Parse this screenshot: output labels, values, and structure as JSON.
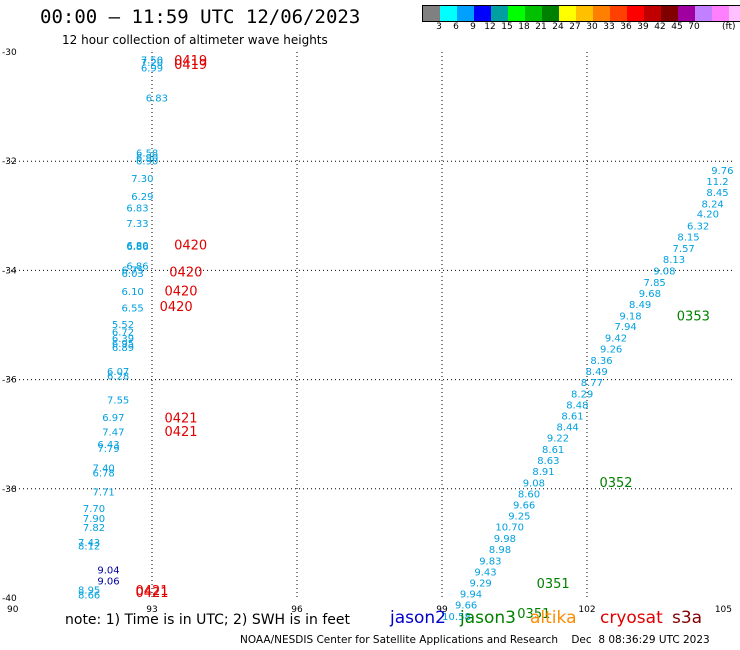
{
  "header": {
    "title": "00:00 – 11:59 UTC 12/06/2023",
    "subtitle": "12 hour collection of altimeter wave heights"
  },
  "colorbar": {
    "colors": [
      "#808080",
      "#00ffff",
      "#00a0ff",
      "#0000ff",
      "#00a0a0",
      "#00ff00",
      "#00c000",
      "#008000",
      "#ffff00",
      "#ffc000",
      "#ff8000",
      "#ff4000",
      "#ff0000",
      "#c00000",
      "#800000",
      "#a000a0",
      "#c080ff",
      "#ff80ff",
      "#ffc0ff",
      "#000000"
    ],
    "labels": [
      "3",
      "6",
      "9",
      "12",
      "15",
      "18",
      "21",
      "24",
      "27",
      "30",
      "33",
      "36",
      "39",
      "42",
      "45",
      "70"
    ],
    "unit": "(ft)"
  },
  "note": "note: 1) Time is in UTC; 2) SWH is in feet",
  "legend": [
    {
      "name": "jason2",
      "color": "#0000c8"
    },
    {
      "name": "jason3",
      "color": "#008000"
    },
    {
      "name": "altika",
      "color": "#ff8c00"
    },
    {
      "name": "cryosat",
      "color": "#e00000"
    },
    {
      "name": "s3a",
      "color": "#800000"
    }
  ],
  "footer": "NOAA/NESDIS Center for Satellite Applications and Research    Dec  8 08:36:29 UTC 2023",
  "chart_data": {
    "type": "scatter",
    "xlim": [
      90,
      105
    ],
    "ylim": [
      -40,
      -30
    ],
    "x_ticks": [
      "90",
      "93",
      "96",
      "99",
      "102",
      "105"
    ],
    "y_ticks": [
      "-30",
      "-32",
      "-34",
      "-36",
      "-38",
      "-40"
    ],
    "grid": true,
    "series": [
      {
        "name": "jason2",
        "color": "#00a0e0",
        "kind": "value",
        "points": [
          {
            "x": 93.0,
            "y": -30.16,
            "label": "7.50"
          },
          {
            "x": 93.0,
            "y": -30.2,
            "label": "7.20"
          },
          {
            "x": 93.0,
            "y": -30.3,
            "label": "6.99"
          },
          {
            "x": 93.1,
            "y": -30.85,
            "label": "6.83"
          },
          {
            "x": 92.9,
            "y": -31.86,
            "label": "6.58"
          },
          {
            "x": 92.9,
            "y": -31.94,
            "label": "6.90"
          },
          {
            "x": 92.9,
            "y": -32.01,
            "label": "6.90"
          },
          {
            "x": 92.8,
            "y": -32.33,
            "label": "7.30"
          },
          {
            "x": 92.8,
            "y": -32.66,
            "label": "6.29"
          },
          {
            "x": 92.7,
            "y": -32.87,
            "label": "6.83"
          },
          {
            "x": 92.7,
            "y": -33.15,
            "label": "7.33"
          },
          {
            "x": 92.7,
            "y": -33.55,
            "label": "6.80"
          },
          {
            "x": 92.7,
            "y": -33.57,
            "label": "6.86"
          },
          {
            "x": 92.7,
            "y": -33.93,
            "label": "6.86"
          },
          {
            "x": 92.6,
            "y": -34.0,
            "label": "6.75"
          },
          {
            "x": 92.6,
            "y": -34.07,
            "label": "6.03"
          },
          {
            "x": 92.6,
            "y": -34.4,
            "label": "6.10"
          },
          {
            "x": 92.6,
            "y": -34.7,
            "label": "6.55"
          },
          {
            "x": 92.4,
            "y": -35.0,
            "label": "5.52"
          },
          {
            "x": 92.4,
            "y": -35.14,
            "label": "6.72"
          },
          {
            "x": 92.4,
            "y": -35.26,
            "label": "6.39"
          },
          {
            "x": 92.4,
            "y": -35.35,
            "label": "6.95"
          },
          {
            "x": 92.4,
            "y": -35.42,
            "label": "6.89"
          },
          {
            "x": 92.3,
            "y": -35.86,
            "label": "6.07"
          },
          {
            "x": 92.3,
            "y": -35.94,
            "label": "6.28"
          },
          {
            "x": 92.3,
            "y": -36.38,
            "label": "7.55"
          },
          {
            "x": 92.2,
            "y": -36.7,
            "label": "6.97"
          },
          {
            "x": 92.2,
            "y": -36.97,
            "label": "7.47"
          },
          {
            "x": 92.1,
            "y": -37.2,
            "label": "6.43"
          },
          {
            "x": 92.1,
            "y": -37.27,
            "label": "7.79"
          },
          {
            "x": 92.0,
            "y": -37.63,
            "label": "7.40"
          },
          {
            "x": 92.0,
            "y": -37.72,
            "label": "6.78"
          },
          {
            "x": 92.0,
            "y": -38.07,
            "label": "7.71"
          },
          {
            "x": 91.8,
            "y": -38.37,
            "label": "7.70"
          },
          {
            "x": 91.8,
            "y": -38.55,
            "label": "7.90"
          },
          {
            "x": 91.8,
            "y": -38.72,
            "label": "7.82"
          },
          {
            "x": 91.7,
            "y": -38.99,
            "label": "7.43"
          },
          {
            "x": 91.7,
            "y": -39.06,
            "label": "8.12"
          },
          {
            "x": 91.7,
            "y": -39.86,
            "label": "8.95"
          },
          {
            "x": 91.7,
            "y": -39.95,
            "label": "8.66"
          }
        ]
      },
      {
        "name": "jason2-dark",
        "color": "#0000a0",
        "kind": "value",
        "points": [
          {
            "x": 92.1,
            "y": -39.5,
            "label": "9.04"
          },
          {
            "x": 92.1,
            "y": -39.7,
            "label": "9.06"
          }
        ]
      },
      {
        "name": "cryosat",
        "color": "#e00000",
        "kind": "id",
        "points": [
          {
            "x": 93.8,
            "y": -30.17,
            "label": "0419"
          },
          {
            "x": 93.8,
            "y": -30.25,
            "label": "0419"
          },
          {
            "x": 93.8,
            "y": -33.55,
            "label": "0420"
          },
          {
            "x": 93.7,
            "y": -34.05,
            "label": "0420"
          },
          {
            "x": 93.6,
            "y": -34.4,
            "label": "0420"
          },
          {
            "x": 93.5,
            "y": -34.68,
            "label": "0420"
          },
          {
            "x": 93.6,
            "y": -36.72,
            "label": "0421"
          },
          {
            "x": 93.6,
            "y": -36.97,
            "label": "0421"
          },
          {
            "x": 93.0,
            "y": -39.88,
            "label": "0421"
          },
          {
            "x": 93.0,
            "y": -39.92,
            "label": "0421"
          }
        ]
      },
      {
        "name": "jason3",
        "color": "#00a0e0",
        "kind": "value",
        "points": [
          {
            "x": 104.8,
            "y": -32.18,
            "label": "9.76"
          },
          {
            "x": 104.7,
            "y": -32.38,
            "label": "11.2"
          },
          {
            "x": 104.7,
            "y": -32.58,
            "label": "8.45"
          },
          {
            "x": 104.6,
            "y": -32.79,
            "label": "8.24"
          },
          {
            "x": 104.5,
            "y": -32.98,
            "label": "4.20"
          },
          {
            "x": 104.3,
            "y": -33.2,
            "label": "6.32"
          },
          {
            "x": 104.1,
            "y": -33.4,
            "label": "8.15"
          },
          {
            "x": 104.0,
            "y": -33.61,
            "label": "7.57"
          },
          {
            "x": 103.8,
            "y": -33.81,
            "label": "8.13"
          },
          {
            "x": 103.6,
            "y": -34.02,
            "label": "9.08"
          },
          {
            "x": 103.4,
            "y": -34.23,
            "label": "7.85"
          },
          {
            "x": 103.3,
            "y": -34.43,
            "label": "9.68"
          },
          {
            "x": 103.1,
            "y": -34.63,
            "label": "8.49"
          },
          {
            "x": 102.9,
            "y": -34.84,
            "label": "9.18"
          },
          {
            "x": 102.8,
            "y": -35.04,
            "label": "7.94"
          },
          {
            "x": 102.6,
            "y": -35.25,
            "label": "9.42"
          },
          {
            "x": 102.5,
            "y": -35.45,
            "label": "9.26"
          },
          {
            "x": 102.3,
            "y": -35.66,
            "label": "8.36"
          },
          {
            "x": 102.2,
            "y": -35.86,
            "label": "8.49"
          },
          {
            "x": 102.1,
            "y": -36.06,
            "label": "8.77"
          },
          {
            "x": 101.9,
            "y": -36.27,
            "label": "8.29"
          },
          {
            "x": 101.8,
            "y": -36.47,
            "label": "8.48"
          },
          {
            "x": 101.7,
            "y": -36.68,
            "label": "8.61"
          },
          {
            "x": 101.6,
            "y": -36.88,
            "label": "8.44"
          },
          {
            "x": 101.4,
            "y": -37.08,
            "label": "9.22"
          },
          {
            "x": 101.3,
            "y": -37.29,
            "label": "8.61"
          },
          {
            "x": 101.2,
            "y": -37.49,
            "label": "8.63"
          },
          {
            "x": 101.1,
            "y": -37.69,
            "label": "8.91"
          },
          {
            "x": 100.9,
            "y": -37.9,
            "label": "9.08"
          },
          {
            "x": 100.8,
            "y": -38.1,
            "label": "8.60"
          },
          {
            "x": 100.7,
            "y": -38.31,
            "label": "9.66"
          },
          {
            "x": 100.6,
            "y": -38.51,
            "label": "9.25"
          },
          {
            "x": 100.4,
            "y": -38.71,
            "label": "10.70"
          },
          {
            "x": 100.3,
            "y": -38.92,
            "label": "9.98"
          },
          {
            "x": 100.2,
            "y": -39.12,
            "label": "8.98"
          },
          {
            "x": 100.0,
            "y": -39.33,
            "label": "9.83"
          },
          {
            "x": 99.9,
            "y": -39.53,
            "label": "9.43"
          },
          {
            "x": 99.8,
            "y": -39.73,
            "label": "9.29"
          },
          {
            "x": 99.6,
            "y": -39.94,
            "label": "9.94"
          },
          {
            "x": 99.5,
            "y": -40.14,
            "label": "9.66"
          },
          {
            "x": 99.3,
            "y": -40.35,
            "label": "10.58"
          }
        ]
      },
      {
        "name": "jason3-id",
        "color": "#008000",
        "kind": "id",
        "points": [
          {
            "x": 104.2,
            "y": -34.85,
            "label": "0353"
          },
          {
            "x": 102.6,
            "y": -37.9,
            "label": "0352"
          },
          {
            "x": 101.3,
            "y": -39.75,
            "label": "0351"
          },
          {
            "x": 100.9,
            "y": -40.3,
            "label": "0351"
          }
        ]
      }
    ]
  }
}
